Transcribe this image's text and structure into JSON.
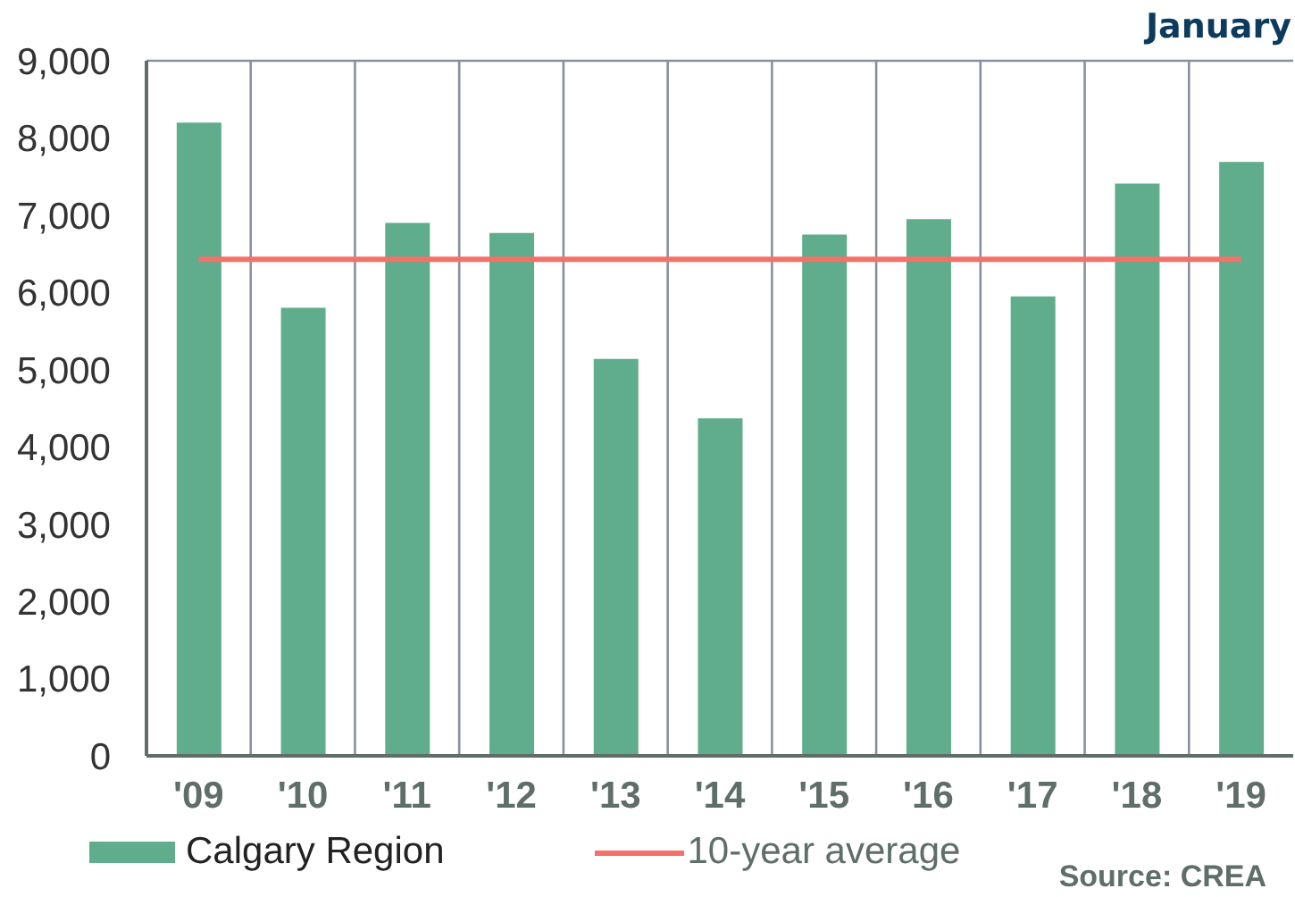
{
  "chart_data": {
    "type": "bar",
    "title": "January",
    "categories": [
      "'09",
      "'10",
      "'11",
      "'12",
      "'13",
      "'14",
      "'15",
      "'16",
      "'17",
      "'18",
      "'19"
    ],
    "series": [
      {
        "name": "Calgary Region",
        "color": "#5fad8c",
        "values": [
          8200,
          5800,
          6900,
          6770,
          5140,
          4370,
          6750,
          6950,
          5950,
          7410,
          7690
        ]
      }
    ],
    "ref_lines": [
      {
        "axis": "y",
        "value": 6430,
        "label": "10-year average",
        "color": "#f4716a"
      }
    ],
    "ylim": [
      0,
      9000
    ],
    "yticks": [
      0,
      {
        "value": 1000,
        "label": "1,000"
      },
      {
        "value": 2000,
        "label": "2,000"
      },
      {
        "value": 3000,
        "label": "3,000"
      },
      {
        "value": 4000,
        "label": "4,000"
      },
      {
        "value": 5000,
        "label": "5,000"
      },
      {
        "value": 6000,
        "label": "6,000"
      },
      {
        "value": 7000,
        "label": "7,000"
      },
      {
        "value": 8000,
        "label": "8,000"
      },
      {
        "value": 9000,
        "label": "9,000"
      }
    ],
    "grid": "x",
    "legend": "bottom",
    "annotations": [
      "Source: CREA"
    ]
  }
}
